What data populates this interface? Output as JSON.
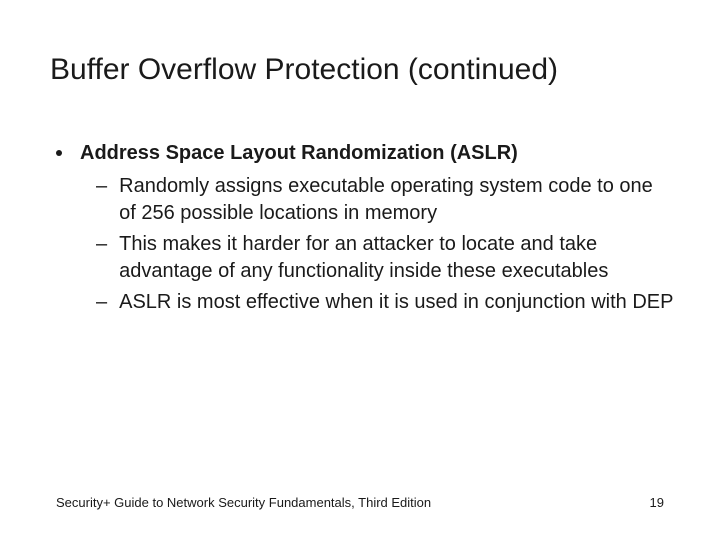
{
  "title": "Buffer Overflow Protection (continued)",
  "bullets": {
    "l1": {
      "text": "Address Space Layout Randomization (ASLR)"
    },
    "l2": [
      {
        "text": "Randomly assigns executable operating system code to one of 256 possible locations in memory"
      },
      {
        "text": "This makes it harder for an attacker to locate and take advantage of any functionality inside these executables"
      },
      {
        "text": "ASLR is most effective when it is used in conjunction with DEP"
      }
    ]
  },
  "footer": {
    "source": "Security+ Guide to Network Security Fundamentals, Third Edition",
    "page": "19"
  },
  "style": {
    "background_color": "#ffffff",
    "text_color": "#1a1a1a",
    "title_fontsize": 30,
    "title_fontweight": 400,
    "l1_fontsize": 20,
    "l1_fontweight": 700,
    "l2_fontsize": 20,
    "l2_fontweight": 400,
    "footer_fontsize": 13,
    "font_family": "Arial"
  }
}
